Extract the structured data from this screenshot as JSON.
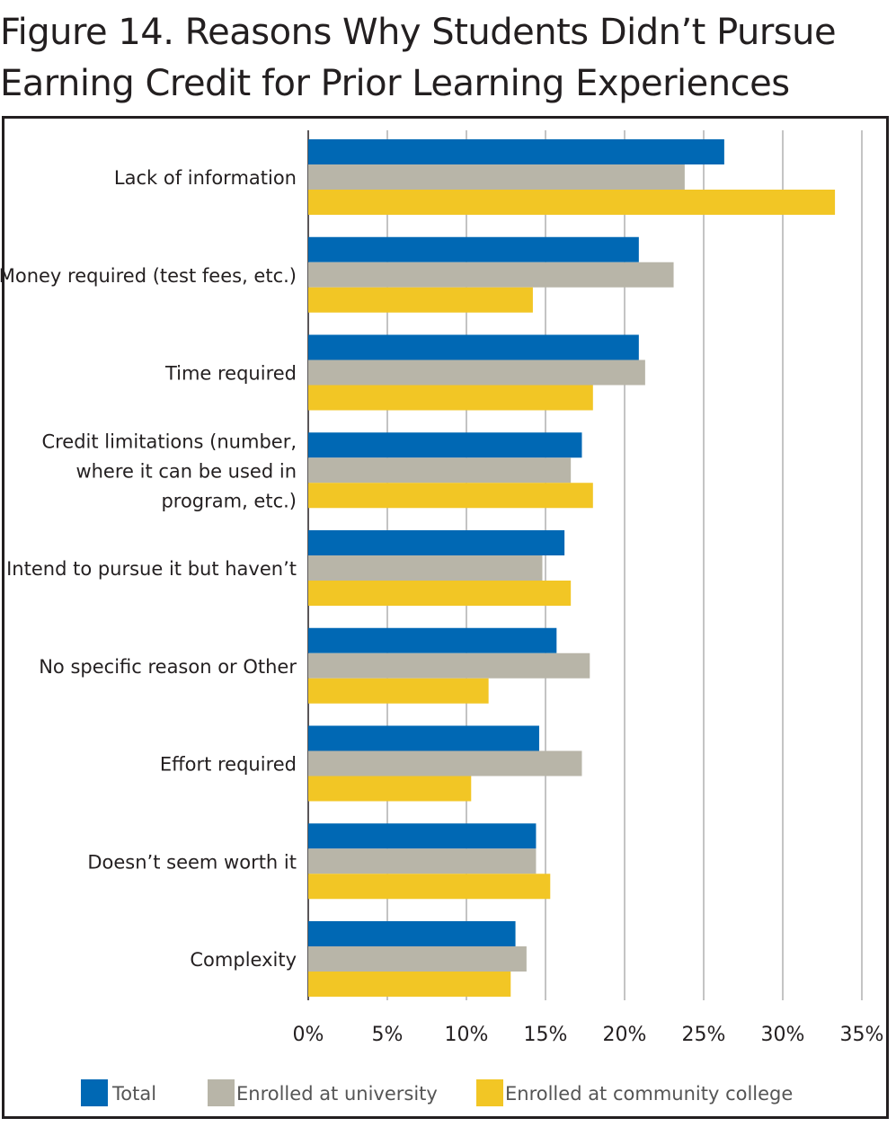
{
  "figure": {
    "title_line1": "Figure 14. Reasons Why Students Didn’t Pursue",
    "title_line2": "Earning Credit for Prior Learning Experiences"
  },
  "chart_data": {
    "type": "bar",
    "orientation": "horizontal",
    "title": "Figure 14. Reasons Why Students Didn’t Pursue Earning Credit for Prior Learning Experiences",
    "categories": [
      "Lack of information",
      "Money required (test fees, etc.)",
      "Time required",
      "Credit limitations (number, where it can be used in program, etc.)",
      "Intend to pursue it but haven’t",
      "No specific reason or Other",
      "Effort required",
      "Doesn’t seem worth it",
      "Complexity"
    ],
    "category_lines": [
      [
        "Lack of information"
      ],
      [
        "Money required (test fees, etc.)"
      ],
      [
        "Time required"
      ],
      [
        "Credit limitations (number,",
        "where it can be used in",
        "program, etc.)"
      ],
      [
        "Intend to pursue it but haven’t"
      ],
      [
        "No specific reason or Other"
      ],
      [
        "Effort required"
      ],
      [
        "Doesn’t seem worth it"
      ],
      [
        "Complexity"
      ]
    ],
    "series": [
      {
        "name": "Total",
        "color": "#0068b4",
        "values": [
          26.3,
          20.9,
          20.9,
          17.3,
          16.2,
          15.7,
          14.6,
          14.4,
          13.1
        ]
      },
      {
        "name": "Enrolled at university",
        "color": "#b8b5a8",
        "values": [
          23.8,
          23.1,
          21.3,
          16.6,
          14.8,
          17.8,
          17.3,
          14.4,
          13.8
        ]
      },
      {
        "name": "Enrolled at community college",
        "color": "#f2c625",
        "values": [
          33.3,
          14.2,
          18.0,
          18.0,
          16.6,
          11.4,
          10.3,
          15.3,
          12.8
        ]
      }
    ],
    "xlim": [
      0,
      35
    ],
    "xticks": [
      0,
      5,
      10,
      15,
      20,
      25,
      30,
      35
    ],
    "xtick_labels": [
      "0%",
      "5%",
      "10%",
      "15%",
      "20%",
      "25%",
      "30%",
      "35%"
    ],
    "grid": true,
    "xlabel": "",
    "ylabel": "",
    "legend_position": "bottom"
  }
}
